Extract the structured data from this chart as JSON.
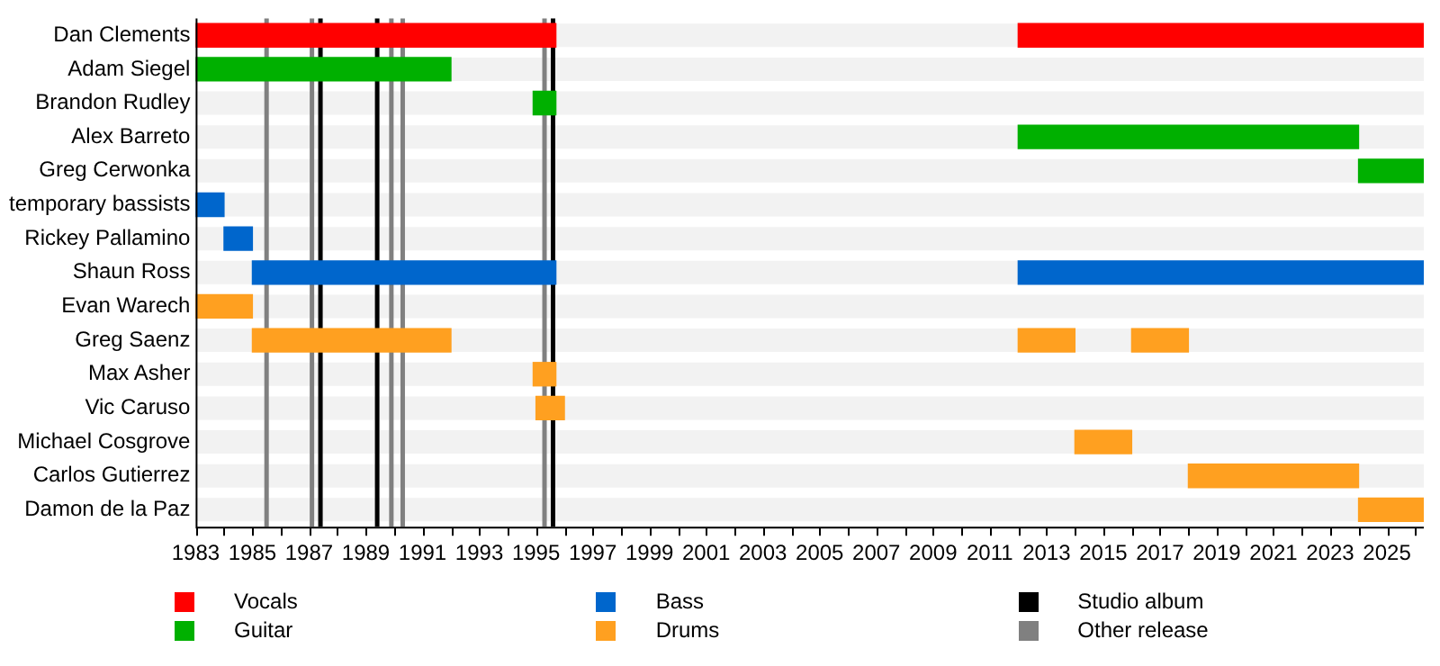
{
  "chart_data": {
    "type": "bar",
    "orientation": "horizontal",
    "legend": "bottom",
    "categories": [
      "Dan Clements",
      "Adam Siegel",
      "Brandon Rudley",
      "Alex Barreto",
      "Greg Cerwonka",
      "temporary bassists",
      "Rickey Pallamino",
      "Shaun Ross",
      "Evan Warech",
      "Greg Saenz",
      "Max Asher",
      "Vic Caruso",
      "Michael Cosgrove",
      "Carlos Gutierrez",
      "Damon de la Paz"
    ],
    "xlim": [
      1983,
      2026.3
    ],
    "xticks": [
      1983,
      {
        "value": 1984,
        "label": null
      },
      1985,
      {
        "value": 1986,
        "label": null
      },
      1987,
      {
        "value": 1988,
        "label": null
      },
      1989,
      {
        "value": 1990,
        "label": null
      },
      1991,
      {
        "value": 1992,
        "label": null
      },
      1993,
      {
        "value": 1994,
        "label": null
      },
      1995,
      {
        "value": 1996,
        "label": null
      },
      1997,
      {
        "value": 1998,
        "label": null
      },
      1999,
      {
        "value": 2000,
        "label": null
      },
      2001,
      {
        "value": 2002,
        "label": null
      },
      2003,
      {
        "value": 2004,
        "label": null
      },
      2005,
      {
        "value": 2006,
        "label": null
      },
      2007,
      {
        "value": 2008,
        "label": null
      },
      2009,
      {
        "value": 2010,
        "label": null
      },
      2011,
      {
        "value": 2012,
        "label": null
      },
      2013,
      {
        "value": 2014,
        "label": null
      },
      2015,
      {
        "value": 2016,
        "label": null
      },
      2017,
      {
        "value": 2018,
        "label": null
      },
      2019,
      {
        "value": 2020,
        "label": null
      },
      2021,
      {
        "value": 2022,
        "label": null
      },
      2023,
      {
        "value": 2024,
        "label": null
      },
      2025,
      {
        "value": 2026,
        "label": null
      }
    ],
    "series": [
      {
        "name": "Vocals",
        "color": "#ff0000",
        "base": [
          1983,
          null,
          null,
          null,
          null,
          null,
          null,
          null,
          null,
          null,
          null,
          null,
          null,
          null,
          null
        ],
        "values": [
          12.7,
          null,
          null,
          null,
          null,
          null,
          null,
          null,
          null,
          null,
          null,
          null,
          null,
          null,
          null
        ]
      },
      {
        "color": "#ff0000",
        "base": [
          2012,
          null,
          null,
          null,
          null,
          null,
          null,
          null,
          null,
          null,
          null,
          null,
          null,
          null,
          null
        ],
        "values": [
          14.3,
          null,
          null,
          null,
          null,
          null,
          null,
          null,
          null,
          null,
          null,
          null,
          null,
          null,
          null
        ]
      },
      {
        "name": "Guitar",
        "color": "#00b000",
        "base": [
          null,
          1983,
          1994.9,
          2012,
          2024,
          null,
          null,
          null,
          null,
          null,
          null,
          null,
          null,
          null,
          null
        ],
        "values": [
          null,
          9,
          0.8,
          12,
          2.3,
          null,
          null,
          null,
          null,
          null,
          null,
          null,
          null,
          null,
          null
        ]
      },
      {
        "name": "Bass",
        "color": "#0066cc",
        "base": [
          null,
          null,
          null,
          null,
          null,
          1983,
          1984,
          1985,
          null,
          null,
          null,
          null,
          null,
          null,
          null
        ],
        "values": [
          null,
          null,
          null,
          null,
          null,
          1,
          1,
          10.7,
          null,
          null,
          null,
          null,
          null,
          null,
          null
        ]
      },
      {
        "color": "#0066cc",
        "base": [
          null,
          null,
          null,
          null,
          null,
          null,
          null,
          2012,
          null,
          null,
          null,
          null,
          null,
          null,
          null
        ],
        "values": [
          null,
          null,
          null,
          null,
          null,
          null,
          null,
          14.3,
          null,
          null,
          null,
          null,
          null,
          null,
          null
        ]
      },
      {
        "name": "Drums",
        "color": "#ffa020",
        "base": [
          null,
          null,
          null,
          null,
          null,
          null,
          null,
          null,
          1983,
          1985,
          1994.9,
          1995,
          2014,
          2018,
          2024
        ],
        "values": [
          null,
          null,
          null,
          null,
          null,
          null,
          null,
          null,
          2,
          7,
          0.8,
          1,
          2,
          6,
          2.3
        ]
      },
      {
        "color": "#ffa020",
        "base": [
          null,
          null,
          null,
          null,
          null,
          null,
          null,
          null,
          null,
          2012,
          null,
          null,
          null,
          null,
          null
        ],
        "values": [
          null,
          null,
          null,
          null,
          null,
          null,
          null,
          null,
          null,
          2,
          null,
          null,
          null,
          null,
          null
        ]
      },
      {
        "color": "#ffa020",
        "base": [
          null,
          null,
          null,
          null,
          null,
          null,
          null,
          null,
          null,
          2016,
          null,
          null,
          null,
          null,
          null
        ],
        "values": [
          null,
          null,
          null,
          null,
          null,
          null,
          null,
          null,
          null,
          2,
          null,
          null,
          null,
          null,
          null
        ]
      }
    ],
    "annotations": [
      "Studio album",
      "Other release"
    ],
    "ref_lines": [
      {
        "axis": "x",
        "value": 1987.4,
        "color": "#000000"
      },
      {
        "axis": "x",
        "value": 1989.4,
        "color": "#000000"
      },
      {
        "axis": "x",
        "value": 1995.6,
        "color": "#000000"
      },
      {
        "axis": "x",
        "value": 1985.5,
        "color": "#808080"
      },
      {
        "axis": "x",
        "value": 1987.1,
        "color": "#808080"
      },
      {
        "axis": "x",
        "value": 1989.9,
        "color": "#808080"
      },
      {
        "axis": "x",
        "value": 1990.3,
        "color": "#808080"
      },
      {
        "axis": "x",
        "value": 1995.3,
        "color": "#808080"
      }
    ]
  }
}
